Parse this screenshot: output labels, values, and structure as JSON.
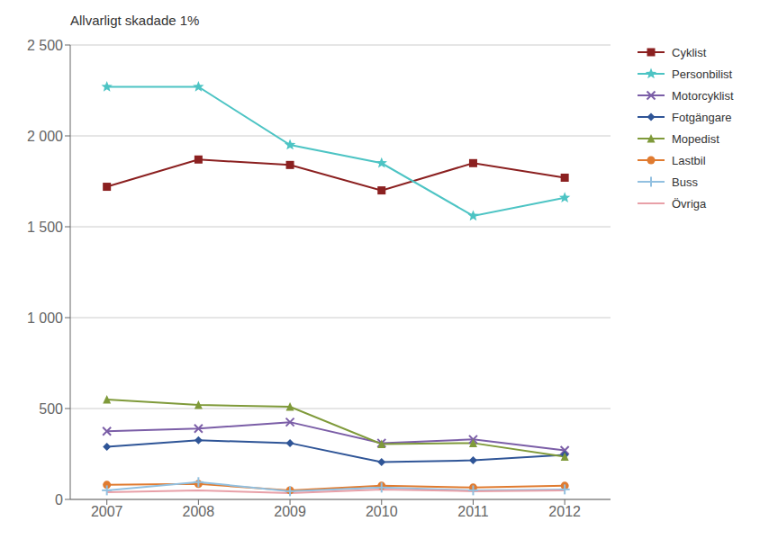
{
  "chart_data": {
    "type": "line",
    "title": "Allvarligt skadade 1%",
    "x": [
      2007,
      2008,
      2009,
      2010,
      2011,
      2012
    ],
    "xlim": [
      2006.6,
      2012.5
    ],
    "xticks": [
      2007,
      2008,
      2009,
      2010,
      2011,
      2012
    ],
    "series": [
      {
        "name": "Cyklist",
        "color": "#8B2020",
        "marker": "square",
        "values": [
          1720,
          1870,
          1840,
          1700,
          1850,
          1770
        ]
      },
      {
        "name": "Personbilist",
        "color": "#4DC4C4",
        "marker": "star",
        "values": [
          2270,
          2270,
          1950,
          1850,
          1560,
          1660
        ]
      },
      {
        "name": "Motorcyklist",
        "color": "#7B5EA7",
        "marker": "x",
        "values": [
          375,
          390,
          425,
          310,
          330,
          270
        ]
      },
      {
        "name": "Fotgängare",
        "color": "#2F5597",
        "marker": "diamond",
        "values": [
          290,
          325,
          310,
          205,
          215,
          245
        ]
      },
      {
        "name": "Mopedist",
        "color": "#7F9A3A",
        "marker": "triangle",
        "values": [
          550,
          520,
          510,
          305,
          310,
          235
        ]
      },
      {
        "name": "Lastbil",
        "color": "#E07B30",
        "marker": "circle",
        "values": [
          80,
          85,
          50,
          75,
          65,
          75
        ]
      },
      {
        "name": "Buss",
        "color": "#92C0E0",
        "marker": "plus",
        "values": [
          50,
          95,
          45,
          65,
          50,
          55
        ]
      },
      {
        "name": "Övriga",
        "color": "#E8A0A8",
        "values": [
          40,
          50,
          35,
          55,
          45,
          50
        ]
      }
    ],
    "ylim": [
      0,
      2500
    ],
    "yticks": [
      0,
      500,
      {
        "value": 1000,
        "label": "1 000"
      },
      {
        "value": 1500,
        "label": "1 500"
      },
      {
        "value": 2000,
        "label": "2 000"
      },
      {
        "value": 2500,
        "label": "2 500"
      }
    ],
    "grid": "y",
    "legend": "right"
  }
}
